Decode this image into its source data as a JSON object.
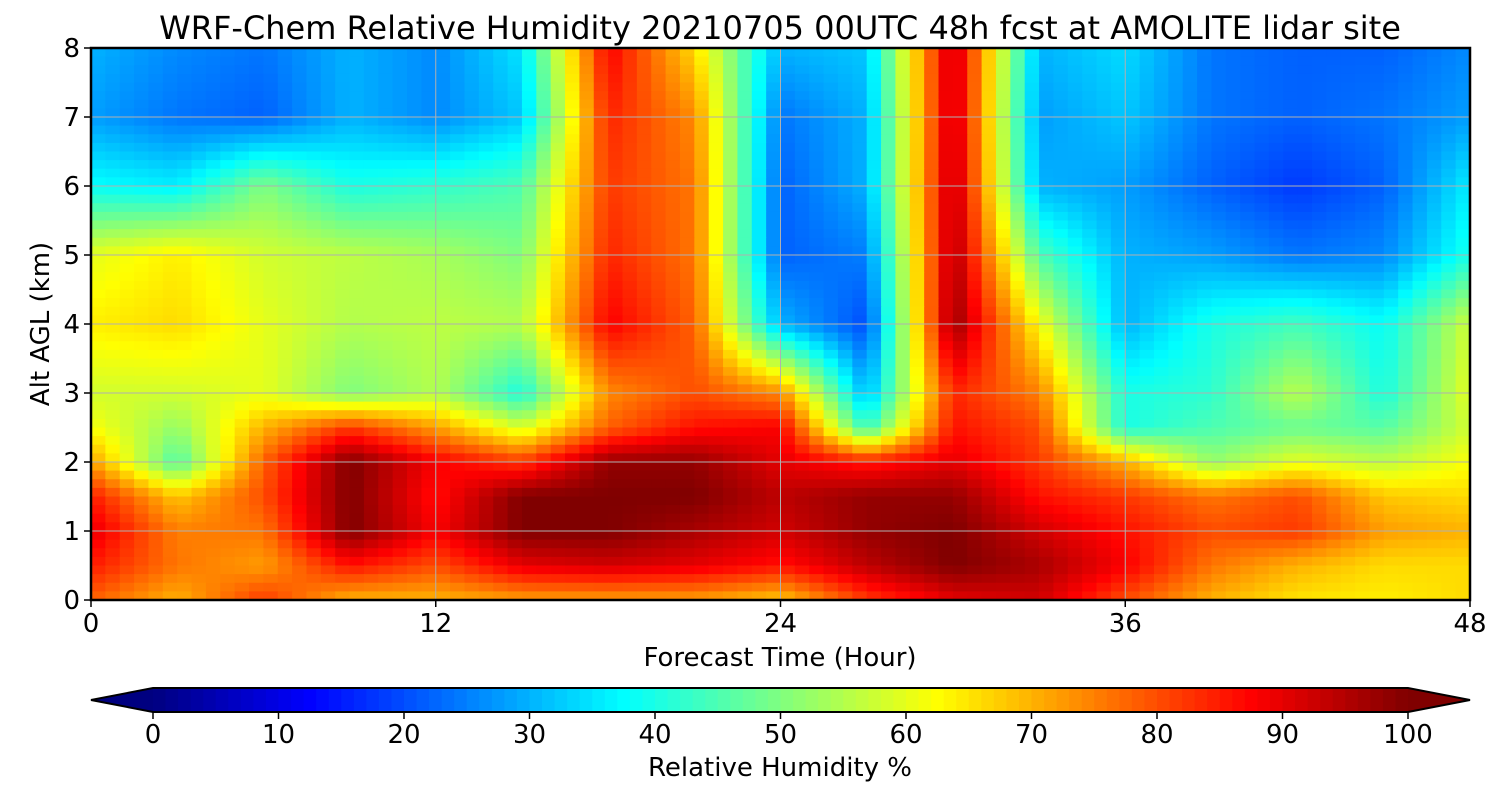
{
  "chart_data": {
    "type": "heatmap",
    "title": "WRF-Chem Relative Humidity 20210705 00UTC 48h fcst at AMOLITE lidar site",
    "xlabel": "Forecast Time (Hour)",
    "ylabel": "Alt AGL (km)",
    "xlim": [
      0,
      48
    ],
    "ylim": [
      0,
      8
    ],
    "x_ticks": [
      0,
      12,
      24,
      36,
      48
    ],
    "y_ticks": [
      0,
      1,
      2,
      3,
      4,
      5,
      6,
      7,
      8
    ],
    "grid": true,
    "colormap": "jet",
    "colorbar": {
      "label": "Relative Humidity %",
      "range": [
        0,
        100
      ],
      "ticks": [
        0,
        10,
        20,
        30,
        40,
        50,
        60,
        70,
        80,
        90,
        100
      ],
      "extend": "both",
      "orientation": "horizontal"
    },
    "x": [
      0,
      3,
      6,
      9,
      12,
      15,
      18,
      21,
      24,
      27,
      30,
      33,
      36,
      39,
      42,
      45,
      48
    ],
    "y": [
      0,
      0.5,
      1,
      1.5,
      2,
      2.5,
      3,
      4,
      5,
      6,
      7,
      8
    ],
    "z": [
      [
        78,
        70,
        82,
        70,
        70,
        72,
        72,
        72,
        68,
        82,
        90,
        92,
        80,
        70,
        65,
        64,
        66
      ],
      [
        85,
        76,
        72,
        86,
        80,
        90,
        92,
        90,
        86,
        94,
        100,
        96,
        88,
        76,
        70,
        66,
        66
      ],
      [
        90,
        75,
        76,
        100,
        88,
        100,
        100,
        96,
        92,
        98,
        100,
        92,
        86,
        80,
        82,
        72,
        70
      ],
      [
        85,
        68,
        80,
        100,
        86,
        100,
        100,
        100,
        94,
        98,
        98,
        86,
        82,
        76,
        80,
        68,
        66
      ],
      [
        72,
        45,
        78,
        100,
        88,
        82,
        98,
        98,
        90,
        85,
        90,
        82,
        70,
        52,
        60,
        56,
        62
      ],
      [
        62,
        52,
        70,
        82,
        72,
        58,
        78,
        86,
        88,
        42,
        86,
        80,
        40,
        45,
        48,
        46,
        58
      ],
      [
        58,
        58,
        60,
        50,
        55,
        40,
        74,
        80,
        74,
        30,
        84,
        75,
        40,
        42,
        56,
        40,
        60
      ],
      [
        64,
        66,
        60,
        55,
        56,
        55,
        88,
        78,
        30,
        20,
        98,
        62,
        30,
        40,
        44,
        38,
        58
      ],
      [
        60,
        64,
        58,
        56,
        54,
        50,
        84,
        76,
        22,
        25,
        96,
        45,
        30,
        28,
        24,
        26,
        40
      ],
      [
        38,
        36,
        50,
        40,
        42,
        45,
        82,
        76,
        22,
        30,
        95,
        30,
        28,
        22,
        18,
        22,
        36
      ],
      [
        28,
        24,
        22,
        30,
        26,
        32,
        84,
        74,
        24,
        30,
        94,
        28,
        32,
        24,
        22,
        24,
        28
      ],
      [
        30,
        26,
        24,
        30,
        26,
        35,
        88,
        66,
        30,
        32,
        94,
        30,
        34,
        24,
        22,
        22,
        26
      ]
    ]
  }
}
